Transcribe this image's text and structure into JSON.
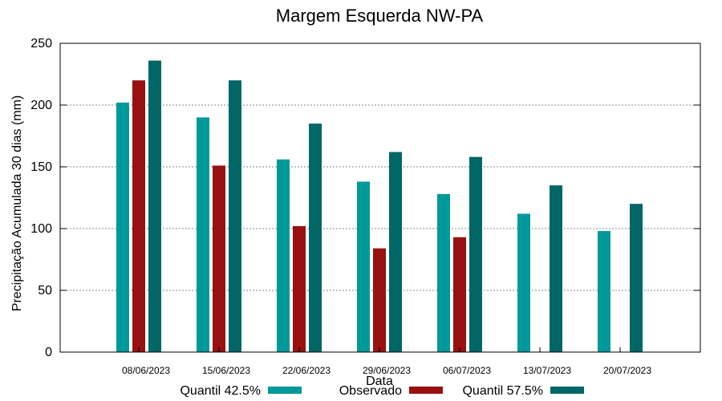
{
  "chart_data": {
    "type": "bar",
    "title": "Margem Esquerda NW-PA",
    "xlabel": "Data",
    "ylabel": "Precipitação Acumulada 30 dias (mm)",
    "ylim": [
      0,
      250
    ],
    "yticks": [
      0,
      50,
      100,
      150,
      200,
      250
    ],
    "grid": true,
    "legend_position": "bottom",
    "categories": [
      "08/06/2023",
      "15/06/2023",
      "22/06/2023",
      "29/06/2023",
      "06/07/2023",
      "13/07/2023",
      "20/07/2023"
    ],
    "series": [
      {
        "name": "Quantil 42.5%",
        "color": "#009999",
        "values": [
          202,
          190,
          156,
          138,
          128,
          112,
          98
        ]
      },
      {
        "name": "Observado",
        "color": "#991111",
        "values": [
          220,
          151,
          102,
          84,
          93,
          null,
          null
        ]
      },
      {
        "name": "Quantil 57.5%",
        "color": "#006666",
        "values": [
          236,
          220,
          185,
          162,
          158,
          135,
          120
        ]
      }
    ]
  }
}
